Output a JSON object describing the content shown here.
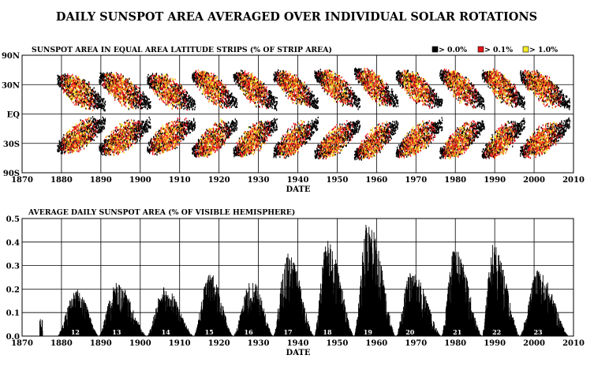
{
  "title": "DAILY SUNSPOT AREA AVERAGED OVER INDIVIDUAL SOLAR ROTATIONS",
  "chart_data": [
    {
      "type": "heatmap",
      "title": "SUNSPOT AREA IN EQUAL AREA LATITUDE STRIPS (% OF STRIP AREA)",
      "xlabel": "DATE",
      "ylabel": "",
      "xlim": [
        1870,
        2010
      ],
      "ylim": [
        -90,
        90
      ],
      "x_ticks": [
        1870,
        1880,
        1890,
        1900,
        1910,
        1920,
        1930,
        1940,
        1950,
        1960,
        1970,
        1980,
        1990,
        2000,
        2010
      ],
      "y_ticks": [
        {
          "value": 90,
          "label": "90N"
        },
        {
          "value": 30,
          "label": "30N"
        },
        {
          "value": 0,
          "label": "EQ"
        },
        {
          "value": -30,
          "label": "30S"
        },
        {
          "value": -90,
          "label": "90S"
        }
      ],
      "legend": [
        {
          "label": "> 0.0%",
          "color": "#000000"
        },
        {
          "label": "> 0.1%",
          "color": "#e8141a"
        },
        {
          "label": "> 1.0%",
          "color": "#f5ee28"
        }
      ],
      "legend_position": "top-right",
      "grid": true,
      "cycles": [
        {
          "start": 1878.9,
          "end": 1891.0,
          "max_lat": 32
        },
        {
          "start": 1889.5,
          "end": 1902.5,
          "max_lat": 35
        },
        {
          "start": 1901.7,
          "end": 1913.8,
          "max_lat": 33
        },
        {
          "start": 1913.1,
          "end": 1924.5,
          "max_lat": 38
        },
        {
          "start": 1923.6,
          "end": 1934.6,
          "max_lat": 37
        },
        {
          "start": 1933.8,
          "end": 1945.1,
          "max_lat": 38
        },
        {
          "start": 1944.2,
          "end": 1955.7,
          "max_lat": 40
        },
        {
          "start": 1954.3,
          "end": 1965.4,
          "max_lat": 42
        },
        {
          "start": 1964.9,
          "end": 1976.6,
          "max_lat": 38
        },
        {
          "start": 1976.0,
          "end": 1987.3,
          "max_lat": 40
        },
        {
          "start": 1986.7,
          "end": 1997.5,
          "max_lat": 40
        },
        {
          "start": 1996.4,
          "end": 2009.0,
          "max_lat": 38
        }
      ]
    },
    {
      "type": "bar",
      "title": "AVERAGE DAILY SUNSPOT AREA (% OF VISIBLE HEMISPHERE)",
      "xlabel": "DATE",
      "ylabel": "",
      "xlim": [
        1870,
        2010
      ],
      "ylim": [
        0,
        0.5
      ],
      "x_ticks": [
        1870,
        1880,
        1890,
        1900,
        1910,
        1920,
        1930,
        1940,
        1950,
        1960,
        1970,
        1980,
        1990,
        2000,
        2010
      ],
      "y_ticks": [
        0.0,
        0.1,
        0.2,
        0.3,
        0.4,
        0.5
      ],
      "grid": true,
      "cycles": [
        {
          "label": "12",
          "label_x": 1883.5,
          "start": 1878.9,
          "max": 1883.9,
          "end": 1889.5,
          "peak": 0.2
        },
        {
          "label": "13",
          "label_x": 1894.0,
          "start": 1889.5,
          "max": 1894.0,
          "end": 1901.7,
          "peak": 0.23
        },
        {
          "label": "14",
          "label_x": 1906.5,
          "start": 1901.7,
          "max": 1906.2,
          "end": 1913.6,
          "peak": 0.21
        },
        {
          "label": "15",
          "label_x": 1917.5,
          "start": 1913.6,
          "max": 1917.6,
          "end": 1923.6,
          "peak": 0.27
        },
        {
          "label": "16",
          "label_x": 1927.5,
          "start": 1923.6,
          "max": 1928.4,
          "end": 1933.8,
          "peak": 0.24
        },
        {
          "label": "17",
          "label_x": 1937.5,
          "start": 1933.8,
          "max": 1937.4,
          "end": 1944.2,
          "peak": 0.36
        },
        {
          "label": "18",
          "label_x": 1947.5,
          "start": 1944.2,
          "max": 1947.5,
          "end": 1954.3,
          "peak": 0.41
        },
        {
          "label": "19",
          "label_x": 1957.8,
          "start": 1954.3,
          "max": 1957.9,
          "end": 1964.9,
          "peak": 0.5
        },
        {
          "label": "20",
          "label_x": 1968.5,
          "start": 1964.9,
          "max": 1968.9,
          "end": 1976.5,
          "peak": 0.28
        },
        {
          "label": "21",
          "label_x": 1980.5,
          "start": 1976.5,
          "max": 1979.9,
          "end": 1986.8,
          "peak": 0.38
        },
        {
          "label": "22",
          "label_x": 1990.5,
          "start": 1986.8,
          "max": 1989.6,
          "end": 1996.4,
          "peak": 0.39
        },
        {
          "label": "23",
          "label_x": 2001.0,
          "start": 1996.4,
          "max": 2001.0,
          "end": 2008.9,
          "peak": 0.28
        }
      ]
    }
  ]
}
